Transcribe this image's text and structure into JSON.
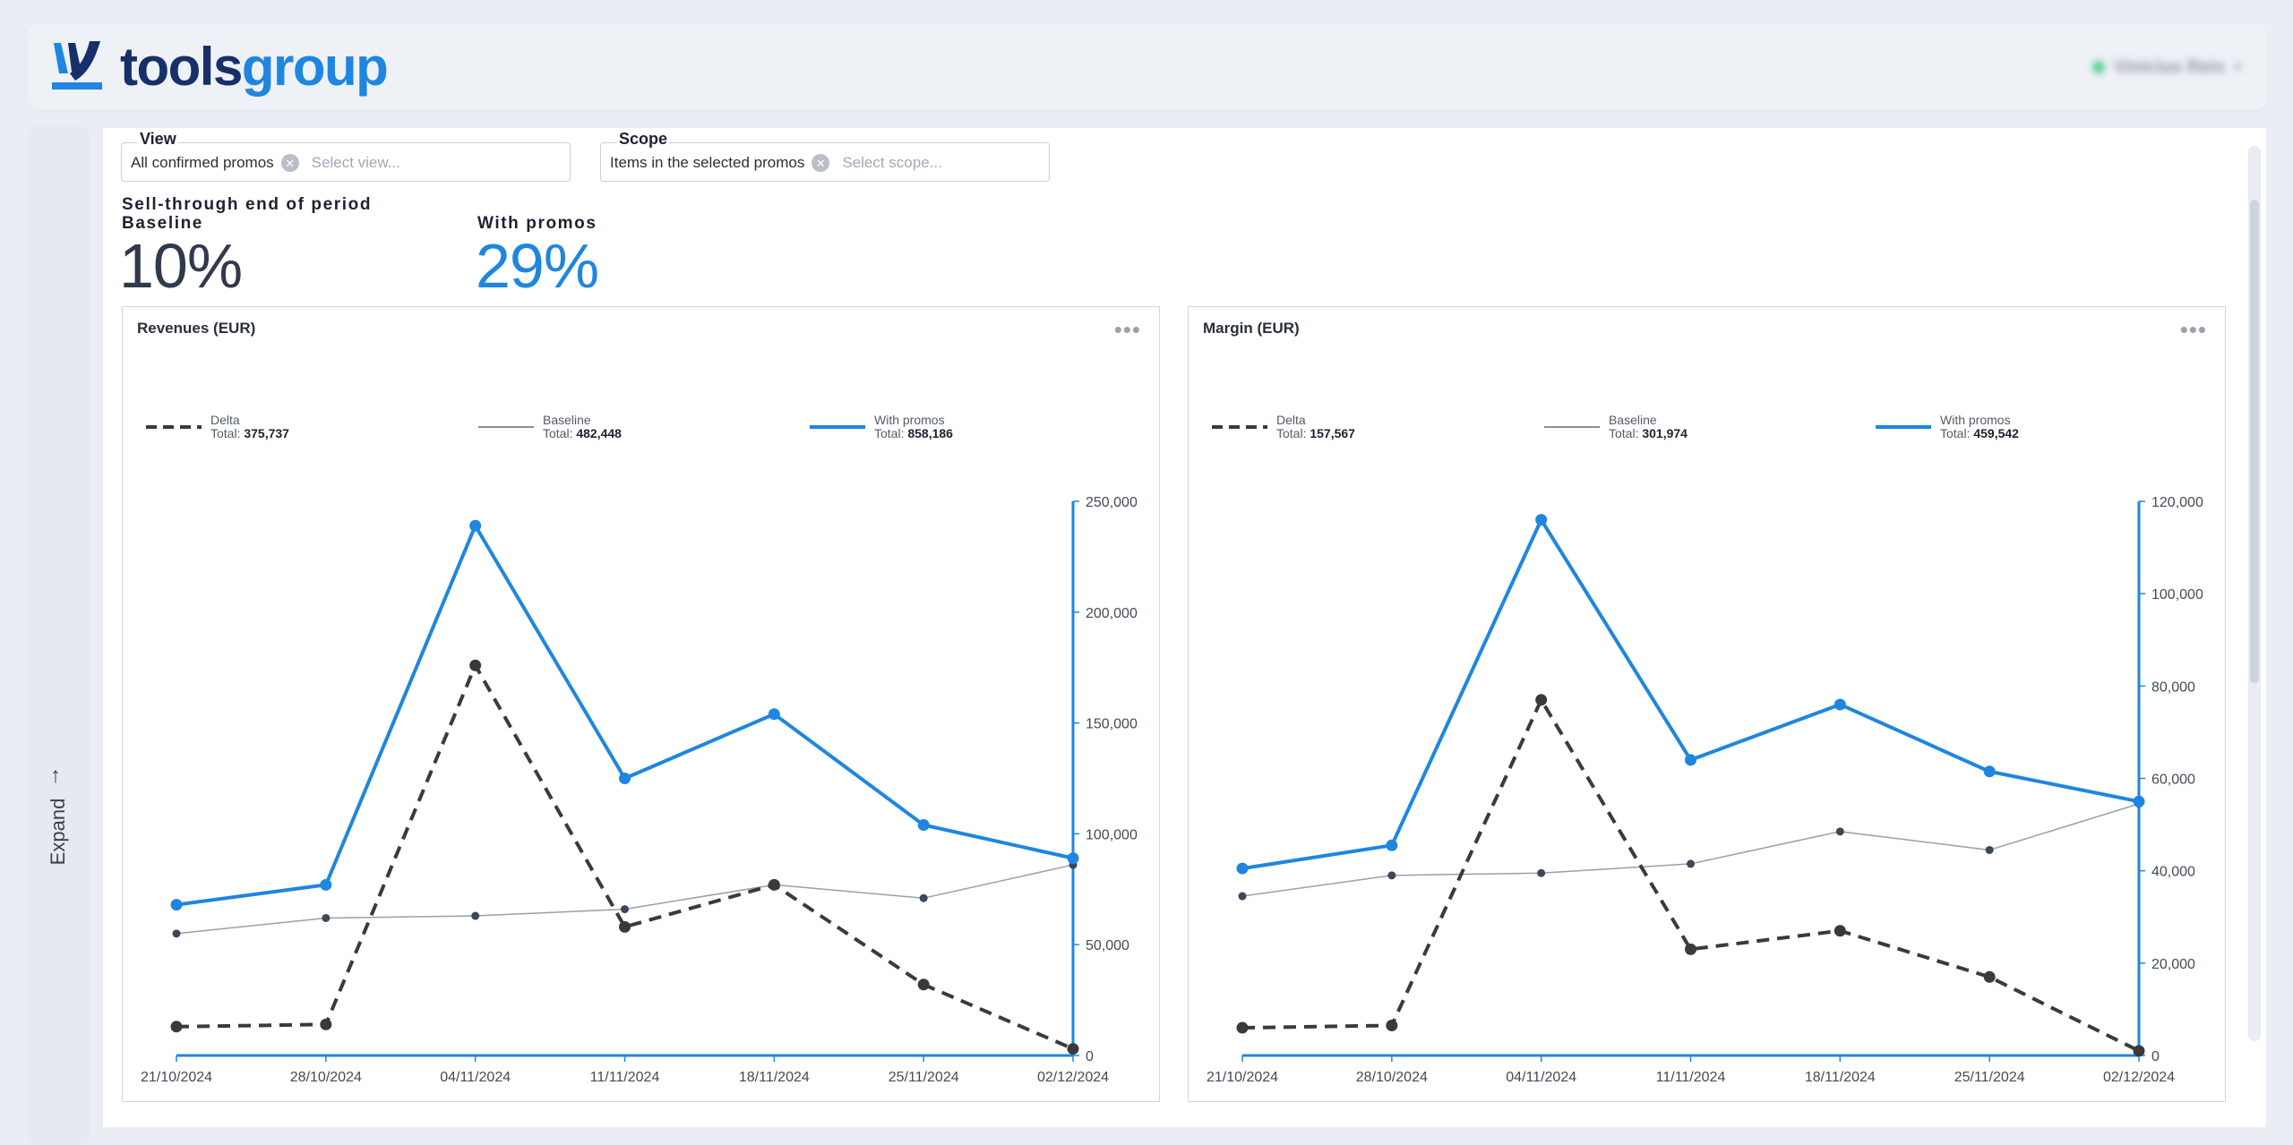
{
  "brand": {
    "name_part1": "tools",
    "name_part2": "group",
    "colors": {
      "dark": "#17306b",
      "accent": "#1e86e0"
    }
  },
  "user": {
    "name": "Vinicius Reis",
    "status_color": "#4fcf8a"
  },
  "sidebar": {
    "expand_label": "Expand",
    "expand_icon": "arrow-right-icon"
  },
  "filters": {
    "view": {
      "label": "View",
      "chip": "All confirmed promos",
      "placeholder": "Select view..."
    },
    "scope": {
      "label": "Scope",
      "chip": "Items in the selected promos",
      "placeholder": "Select scope..."
    }
  },
  "kpis": {
    "caption": "Sell-through end of period",
    "baseline": {
      "label": "Baseline",
      "value": "10%"
    },
    "promo": {
      "label": "With promos",
      "value": "29%"
    }
  },
  "legend_total_prefix": "Total:",
  "chart_data": [
    {
      "type": "line",
      "title": "Revenues (EUR)",
      "categories": [
        "21/10/2024",
        "28/10/2024",
        "04/11/2024",
        "11/11/2024",
        "18/11/2024",
        "25/11/2024",
        "02/12/2024"
      ],
      "ylim": [
        0,
        250000
      ],
      "yticks": [
        0,
        50000,
        100000,
        150000,
        200000,
        250000
      ],
      "ytick_labels": [
        "0",
        "50,000",
        "100,000",
        "150,000",
        "200,000",
        "250,000"
      ],
      "y_axis_side": "right",
      "legend_position": "top",
      "series": [
        {
          "name": "Delta",
          "total": "375,737",
          "style": "dashed",
          "color": "#3a3a3a",
          "values": [
            13000,
            14000,
            176000,
            58000,
            77000,
            32000,
            3000
          ]
        },
        {
          "name": "Baseline",
          "total": "482,448",
          "style": "thin",
          "color": "#8a8f97",
          "values": [
            55000,
            62000,
            63000,
            66000,
            77000,
            71000,
            86000
          ]
        },
        {
          "name": "With promos",
          "total": "858,186",
          "style": "solid",
          "color": "#1e86e0",
          "values": [
            68000,
            77000,
            239000,
            125000,
            154000,
            104000,
            89000
          ]
        }
      ]
    },
    {
      "type": "line",
      "title": "Margin (EUR)",
      "categories": [
        "21/10/2024",
        "28/10/2024",
        "04/11/2024",
        "11/11/2024",
        "18/11/2024",
        "25/11/2024",
        "02/12/2024"
      ],
      "ylim": [
        0,
        120000
      ],
      "yticks": [
        0,
        20000,
        40000,
        60000,
        80000,
        100000,
        120000
      ],
      "ytick_labels": [
        "0",
        "20,000",
        "40,000",
        "60,000",
        "80,000",
        "100,000",
        "120,000"
      ],
      "y_axis_side": "right",
      "legend_position": "top",
      "series": [
        {
          "name": "Delta",
          "total": "157,567",
          "style": "dashed",
          "color": "#3a3a3a",
          "values": [
            6000,
            6500,
            77000,
            23000,
            27000,
            17000,
            1000
          ]
        },
        {
          "name": "Baseline",
          "total": "301,974",
          "style": "thin",
          "color": "#8a8f97",
          "values": [
            34500,
            39000,
            39500,
            41500,
            48500,
            44500,
            54500
          ]
        },
        {
          "name": "With promos",
          "total": "459,542",
          "style": "solid",
          "color": "#1e86e0",
          "values": [
            40500,
            45500,
            116000,
            64000,
            76000,
            61500,
            55000
          ]
        }
      ]
    }
  ]
}
